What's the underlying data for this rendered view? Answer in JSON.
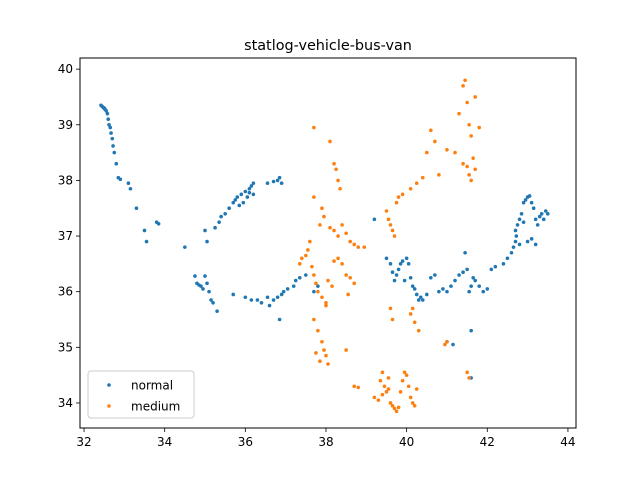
{
  "chart_data": {
    "type": "scatter",
    "title": "statlog-vehicle-bus-van",
    "xlabel": "",
    "ylabel": "",
    "xlim": [
      31.9,
      44.2
    ],
    "ylim": [
      33.55,
      40.2
    ],
    "xticks": [
      32,
      34,
      36,
      38,
      40,
      42,
      44
    ],
    "yticks": [
      34,
      35,
      36,
      37,
      38,
      39,
      40
    ],
    "grid": false,
    "legend_position": "lower-left",
    "series": [
      {
        "name": "normal",
        "color": "#1f77b4",
        "points": [
          [
            32.42,
            39.35
          ],
          [
            32.45,
            39.33
          ],
          [
            32.48,
            39.31
          ],
          [
            32.5,
            39.3
          ],
          [
            32.52,
            39.28
          ],
          [
            32.55,
            39.25
          ],
          [
            32.58,
            39.2
          ],
          [
            32.6,
            39.1
          ],
          [
            32.62,
            39.0
          ],
          [
            32.65,
            38.95
          ],
          [
            32.67,
            38.85
          ],
          [
            32.7,
            38.75
          ],
          [
            32.72,
            38.62
          ],
          [
            32.75,
            38.5
          ],
          [
            32.8,
            38.3
          ],
          [
            32.85,
            38.05
          ],
          [
            32.9,
            38.02
          ],
          [
            33.1,
            37.95
          ],
          [
            33.15,
            37.85
          ],
          [
            33.3,
            37.5
          ],
          [
            33.5,
            37.1
          ],
          [
            33.55,
            36.9
          ],
          [
            33.8,
            37.25
          ],
          [
            33.85,
            37.22
          ],
          [
            34.5,
            36.8
          ],
          [
            34.75,
            36.28
          ],
          [
            34.8,
            36.15
          ],
          [
            34.85,
            36.12
          ],
          [
            34.9,
            36.1
          ],
          [
            34.95,
            36.05
          ],
          [
            35.0,
            36.28
          ],
          [
            35.05,
            36.15
          ],
          [
            35.1,
            36.0
          ],
          [
            35.15,
            35.85
          ],
          [
            35.2,
            35.8
          ],
          [
            35.3,
            35.65
          ],
          [
            35.0,
            37.1
          ],
          [
            35.05,
            36.9
          ],
          [
            35.25,
            37.15
          ],
          [
            35.35,
            37.25
          ],
          [
            35.4,
            37.35
          ],
          [
            35.5,
            37.4
          ],
          [
            35.6,
            37.5
          ],
          [
            35.7,
            37.6
          ],
          [
            35.75,
            37.65
          ],
          [
            35.8,
            37.7
          ],
          [
            35.9,
            37.75
          ],
          [
            36.0,
            37.8
          ],
          [
            36.1,
            37.85
          ],
          [
            36.15,
            37.9
          ],
          [
            36.2,
            37.95
          ],
          [
            35.85,
            37.55
          ],
          [
            35.95,
            37.6
          ],
          [
            36.05,
            37.7
          ],
          [
            36.55,
            37.95
          ],
          [
            36.7,
            37.98
          ],
          [
            36.8,
            38.0
          ],
          [
            36.85,
            38.05
          ],
          [
            36.9,
            37.95
          ],
          [
            36.2,
            37.75
          ],
          [
            36.1,
            37.78
          ],
          [
            35.7,
            35.95
          ],
          [
            36.0,
            35.9
          ],
          [
            36.15,
            35.85
          ],
          [
            36.3,
            35.85
          ],
          [
            36.4,
            35.8
          ],
          [
            36.55,
            35.9
          ],
          [
            36.6,
            35.75
          ],
          [
            36.7,
            35.85
          ],
          [
            36.8,
            35.9
          ],
          [
            36.85,
            35.5
          ],
          [
            36.9,
            35.95
          ],
          [
            36.95,
            36.0
          ],
          [
            37.05,
            36.05
          ],
          [
            37.2,
            36.1
          ],
          [
            37.25,
            36.2
          ],
          [
            37.35,
            36.25
          ],
          [
            37.5,
            36.3
          ],
          [
            37.7,
            36.0
          ],
          [
            37.8,
            36.1
          ],
          [
            39.2,
            37.3
          ],
          [
            39.5,
            36.6
          ],
          [
            39.6,
            36.5
          ],
          [
            39.65,
            36.35
          ],
          [
            39.7,
            36.2
          ],
          [
            39.75,
            36.3
          ],
          [
            39.8,
            36.4
          ],
          [
            39.85,
            36.5
          ],
          [
            39.9,
            36.55
          ],
          [
            40.0,
            36.6
          ],
          [
            40.05,
            36.5
          ],
          [
            39.95,
            36.2
          ],
          [
            40.1,
            36.25
          ],
          [
            40.15,
            36.1
          ],
          [
            40.2,
            36.05
          ],
          [
            40.25,
            35.95
          ],
          [
            40.3,
            35.85
          ],
          [
            40.35,
            35.9
          ],
          [
            40.4,
            35.85
          ],
          [
            40.5,
            35.95
          ],
          [
            40.6,
            36.25
          ],
          [
            40.7,
            36.3
          ],
          [
            40.8,
            36.0
          ],
          [
            40.9,
            36.05
          ],
          [
            41.0,
            36.0
          ],
          [
            41.1,
            36.1
          ],
          [
            41.2,
            36.2
          ],
          [
            41.3,
            36.3
          ],
          [
            41.4,
            36.35
          ],
          [
            41.45,
            36.7
          ],
          [
            41.5,
            36.4
          ],
          [
            41.55,
            36.0
          ],
          [
            41.6,
            36.1
          ],
          [
            41.65,
            36.25
          ],
          [
            41.7,
            36.2
          ],
          [
            41.8,
            36.1
          ],
          [
            41.9,
            36.0
          ],
          [
            42.0,
            36.05
          ],
          [
            42.1,
            36.4
          ],
          [
            42.2,
            36.45
          ],
          [
            42.4,
            36.5
          ],
          [
            42.5,
            36.6
          ],
          [
            42.6,
            36.7
          ],
          [
            42.65,
            36.8
          ],
          [
            42.7,
            36.9
          ],
          [
            42.72,
            37.0
          ],
          [
            42.75,
            37.2
          ],
          [
            42.8,
            37.3
          ],
          [
            42.85,
            37.4
          ],
          [
            42.9,
            37.6
          ],
          [
            42.95,
            37.65
          ],
          [
            43.0,
            37.7
          ],
          [
            43.05,
            37.72
          ],
          [
            43.1,
            37.6
          ],
          [
            43.15,
            37.5
          ],
          [
            43.2,
            37.3
          ],
          [
            43.25,
            37.2
          ],
          [
            43.3,
            37.35
          ],
          [
            43.35,
            37.4
          ],
          [
            43.4,
            37.3
          ],
          [
            43.45,
            37.45
          ],
          [
            43.5,
            37.4
          ],
          [
            43.0,
            36.9
          ],
          [
            43.1,
            36.95
          ],
          [
            43.2,
            36.85
          ],
          [
            42.8,
            36.85
          ],
          [
            42.7,
            37.1
          ],
          [
            42.9,
            37.25
          ],
          [
            41.0,
            35.1
          ],
          [
            41.15,
            35.05
          ],
          [
            41.6,
            35.3
          ],
          [
            41.6,
            34.45
          ]
        ]
      },
      {
        "name": "medium",
        "color": "#ff7f0e",
        "points": [
          [
            37.7,
            38.95
          ],
          [
            38.1,
            38.7
          ],
          [
            38.2,
            38.3
          ],
          [
            38.25,
            38.2
          ],
          [
            38.3,
            38.0
          ],
          [
            38.35,
            37.85
          ],
          [
            37.7,
            37.7
          ],
          [
            37.9,
            37.5
          ],
          [
            37.95,
            37.35
          ],
          [
            37.85,
            37.2
          ],
          [
            38.1,
            37.15
          ],
          [
            38.2,
            37.1
          ],
          [
            38.3,
            37.0
          ],
          [
            38.4,
            37.2
          ],
          [
            38.5,
            37.05
          ],
          [
            38.6,
            36.9
          ],
          [
            38.7,
            36.85
          ],
          [
            38.8,
            36.8
          ],
          [
            37.6,
            36.9
          ],
          [
            37.55,
            36.75
          ],
          [
            37.5,
            36.65
          ],
          [
            37.4,
            36.6
          ],
          [
            37.35,
            36.5
          ],
          [
            37.65,
            36.45
          ],
          [
            37.7,
            36.3
          ],
          [
            37.75,
            36.15
          ],
          [
            37.8,
            36.0
          ],
          [
            37.9,
            35.9
          ],
          [
            38.0,
            35.8
          ],
          [
            38.05,
            36.2
          ],
          [
            38.15,
            36.1
          ],
          [
            38.2,
            36.55
          ],
          [
            38.3,
            36.6
          ],
          [
            38.4,
            36.5
          ],
          [
            38.5,
            36.3
          ],
          [
            38.6,
            36.25
          ],
          [
            38.7,
            36.15
          ],
          [
            38.55,
            35.95
          ],
          [
            38.0,
            35.75
          ],
          [
            38.95,
            36.8
          ],
          [
            37.7,
            35.5
          ],
          [
            37.8,
            35.3
          ],
          [
            37.9,
            35.1
          ],
          [
            37.95,
            34.95
          ],
          [
            38.0,
            34.85
          ],
          [
            38.05,
            34.7
          ],
          [
            37.85,
            34.75
          ],
          [
            37.75,
            34.9
          ],
          [
            38.5,
            34.95
          ],
          [
            38.7,
            34.3
          ],
          [
            38.8,
            34.28
          ],
          [
            39.2,
            34.1
          ],
          [
            39.3,
            34.05
          ],
          [
            39.35,
            34.4
          ],
          [
            39.4,
            34.55
          ],
          [
            39.45,
            34.3
          ],
          [
            39.5,
            34.2
          ],
          [
            39.55,
            34.45
          ],
          [
            39.6,
            34.0
          ],
          [
            39.65,
            33.95
          ],
          [
            39.7,
            33.9
          ],
          [
            39.75,
            33.85
          ],
          [
            39.8,
            33.92
          ],
          [
            39.85,
            34.2
          ],
          [
            39.9,
            34.4
          ],
          [
            39.95,
            34.55
          ],
          [
            40.0,
            34.5
          ],
          [
            40.05,
            34.3
          ],
          [
            40.1,
            34.1
          ],
          [
            40.15,
            34.0
          ],
          [
            40.2,
            33.95
          ],
          [
            40.25,
            34.25
          ],
          [
            39.4,
            34.15
          ],
          [
            39.55,
            34.25
          ],
          [
            39.5,
            37.45
          ],
          [
            39.55,
            37.3
          ],
          [
            39.6,
            37.2
          ],
          [
            39.65,
            37.1
          ],
          [
            39.7,
            37.0
          ],
          [
            39.75,
            37.6
          ],
          [
            39.8,
            37.7
          ],
          [
            39.9,
            37.75
          ],
          [
            40.1,
            37.85
          ],
          [
            40.25,
            37.95
          ],
          [
            40.4,
            38.05
          ],
          [
            40.5,
            38.5
          ],
          [
            40.6,
            38.9
          ],
          [
            40.7,
            38.7
          ],
          [
            40.8,
            38.1
          ],
          [
            41.0,
            38.55
          ],
          [
            41.2,
            38.5
          ],
          [
            41.3,
            39.2
          ],
          [
            41.4,
            39.7
          ],
          [
            41.45,
            39.8
          ],
          [
            41.5,
            39.4
          ],
          [
            41.55,
            39.0
          ],
          [
            41.6,
            38.8
          ],
          [
            41.7,
            39.5
          ],
          [
            41.8,
            38.95
          ],
          [
            41.4,
            38.3
          ],
          [
            41.5,
            38.25
          ],
          [
            41.55,
            38.1
          ],
          [
            41.6,
            38.0
          ],
          [
            41.65,
            38.4
          ],
          [
            41.7,
            38.2
          ],
          [
            39.6,
            35.7
          ],
          [
            39.65,
            35.5
          ],
          [
            40.1,
            35.6
          ],
          [
            40.15,
            35.7
          ],
          [
            40.2,
            35.45
          ],
          [
            40.3,
            35.3
          ],
          [
            41.5,
            34.55
          ],
          [
            41.55,
            34.45
          ],
          [
            41.0,
            35.1
          ],
          [
            40.95,
            35.05
          ]
        ]
      }
    ]
  }
}
